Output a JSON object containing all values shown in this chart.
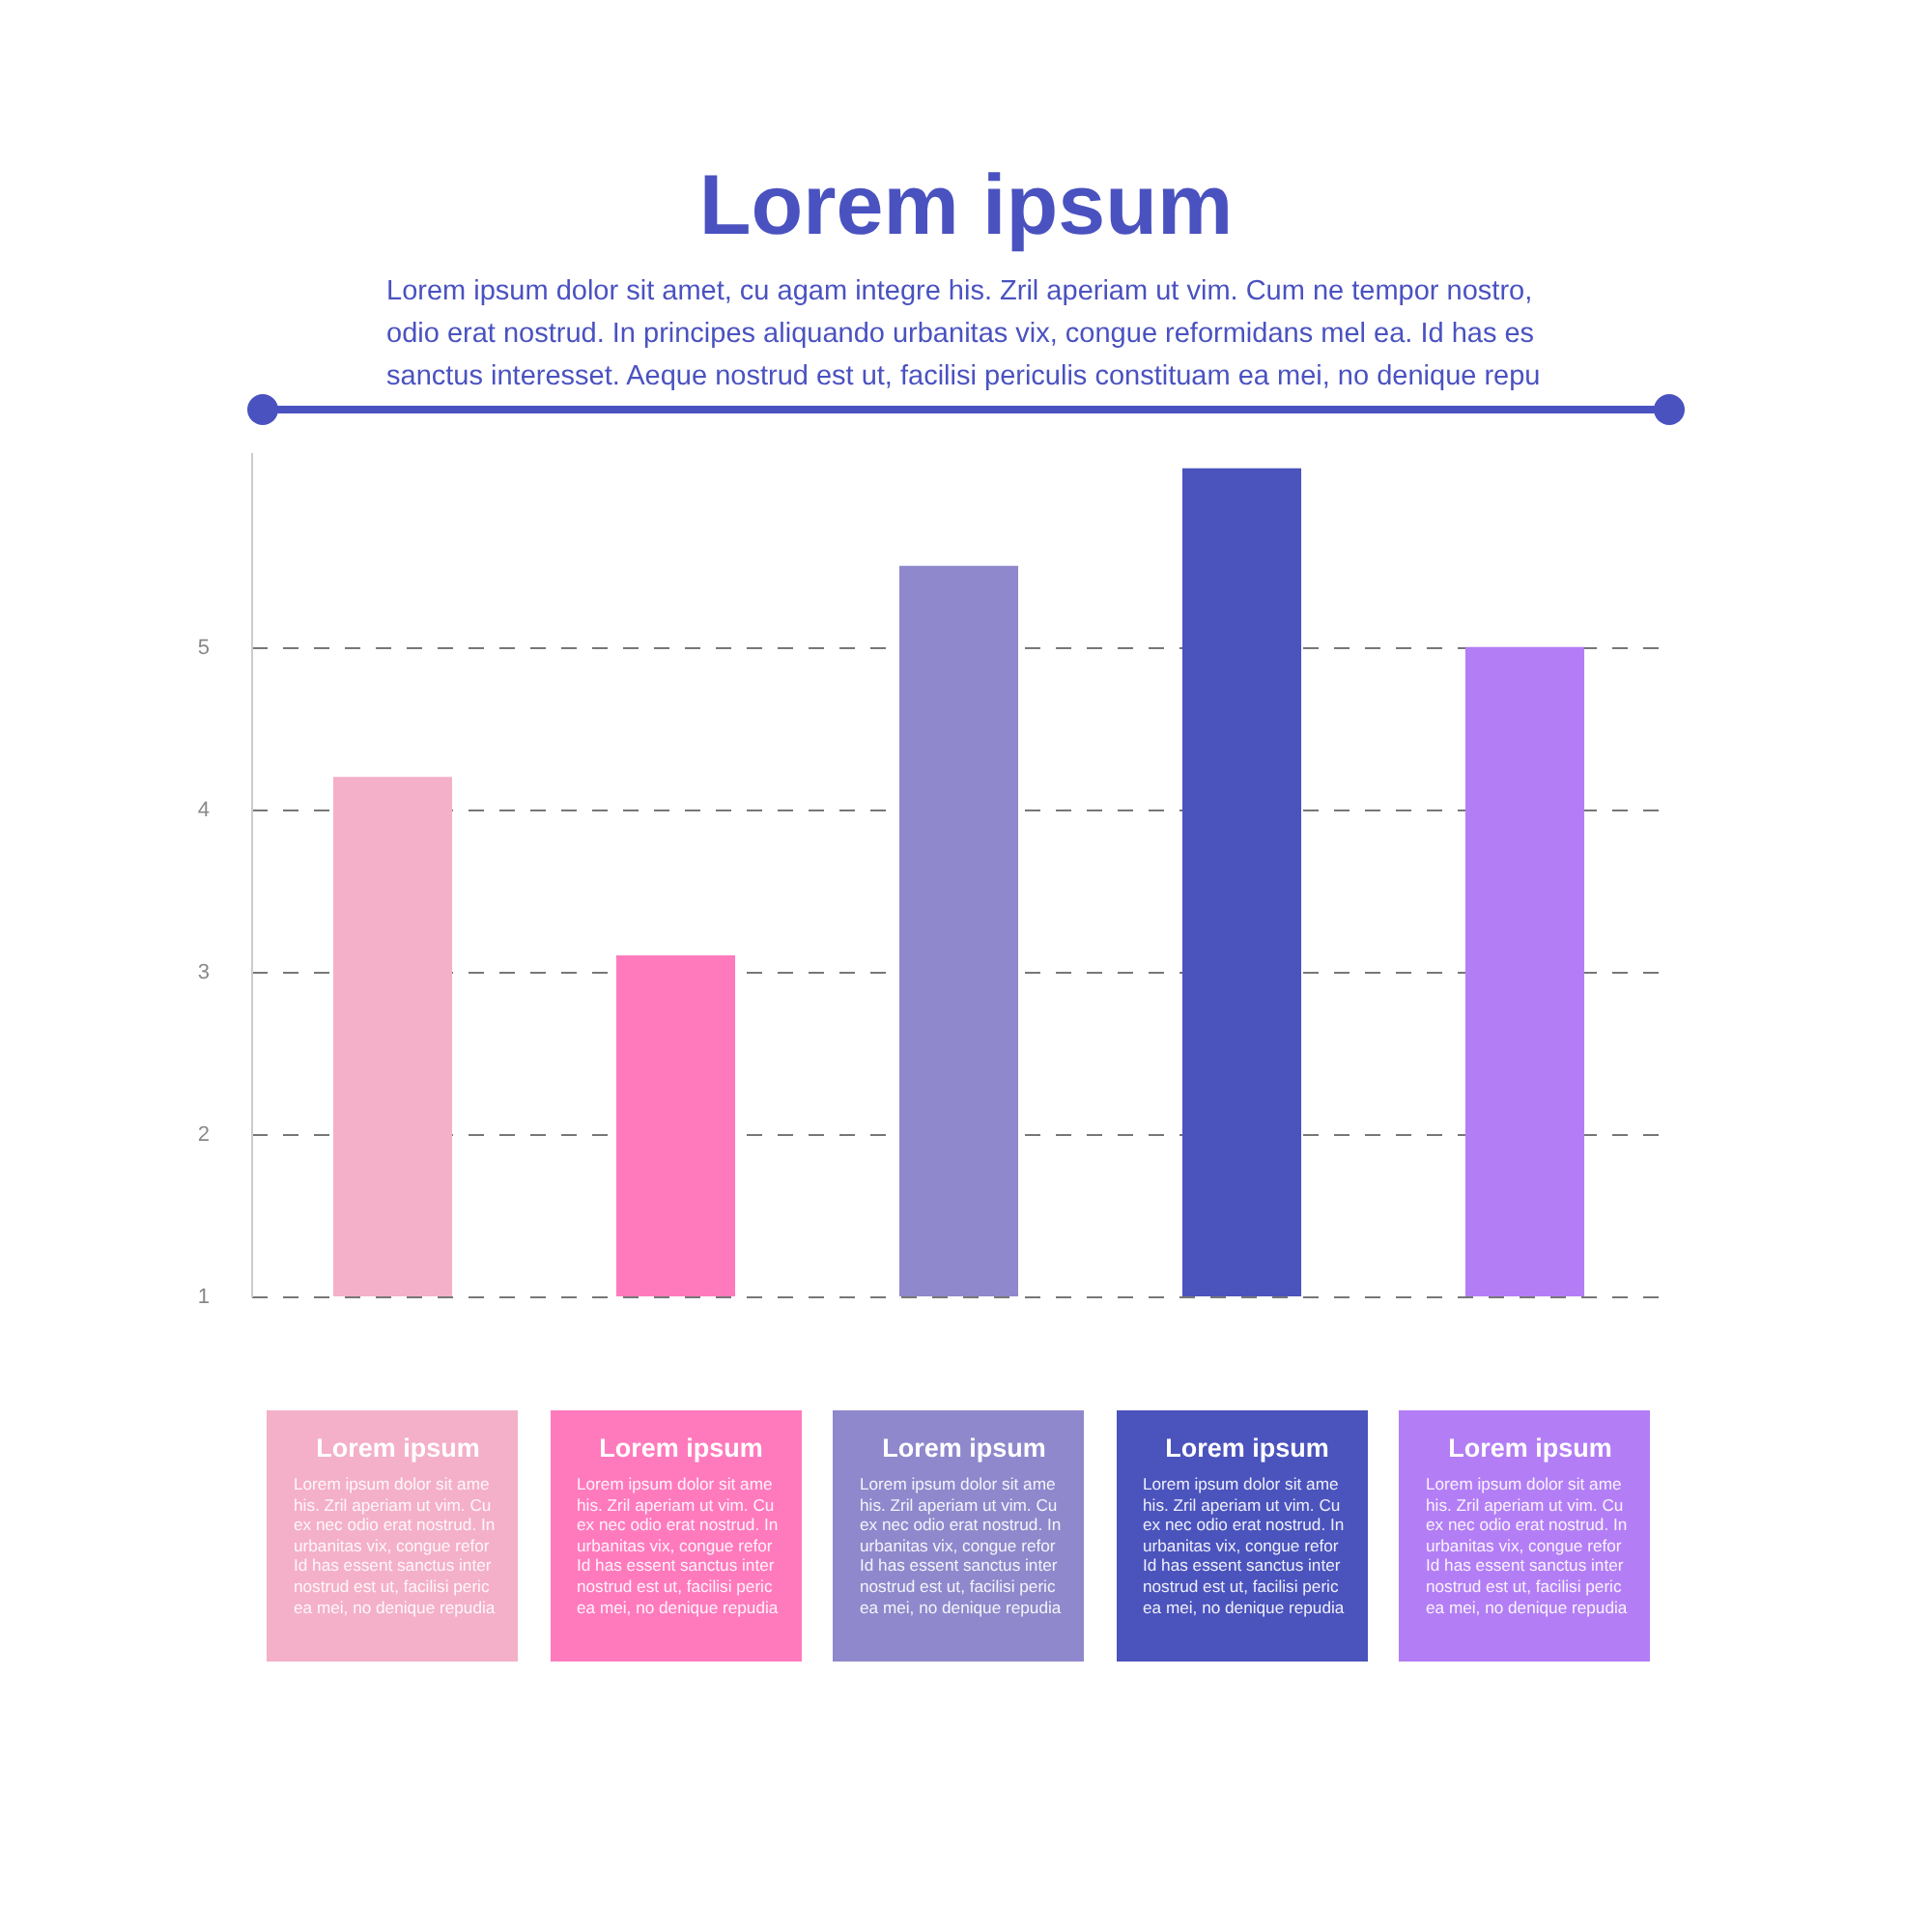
{
  "chart_data": {
    "type": "bar",
    "title": "Lorem ipsum",
    "subtitle": "Lorem ipsum dolor sit amet, cu agam integre his. Zril aperiam ut vim. Cum ne tempor nostro, odio erat nostrud. In principes aliquando urbanitas vix, congue reformidans mel ea. Id has es sanctus interesset. Aeque nostrud est ut, facilisi periculis constituam ea mei, no denique repu",
    "categories": [
      "Lorem ipsum",
      "Lorem ipsum",
      "Lorem ipsum",
      "Lorem ipsum",
      "Lorem ipsum"
    ],
    "values": [
      4.2,
      3.1,
      5.5,
      6.1,
      5.0
    ],
    "colors": [
      "#f4b0c8",
      "#ff7abd",
      "#8f88cc",
      "#4b53bd",
      "#b37ef5"
    ],
    "ylim": [
      1,
      6.2
    ],
    "yticks": [
      1,
      2,
      3,
      4,
      5
    ],
    "grid": "y",
    "annotations": [
      "Lorem ipsum dolor sit ame his. Zril aperiam ut vim. Cu ex nec odio erat nostrud. In urbanitas vix, congue refor Id has essent sanctus inter nostrud est ut, facilisi peric ea mei, no denique repudia",
      "Lorem ipsum dolor sit ame his. Zril aperiam ut vim. Cu ex nec odio erat nostrud. In urbanitas vix, congue refor Id has essent sanctus inter nostrud est ut, facilisi peric ea mei, no denique repudia",
      "Lorem ipsum dolor sit ame his. Zril aperiam ut vim. Cu ex nec odio erat nostrud. In urbanitas vix, congue refor Id has essent sanctus inter nostrud est ut, facilisi peric ea mei, no denique repudia",
      "Lorem ipsum dolor sit ame his. Zril aperiam ut vim. Cu ex nec odio erat nostrud. In urbanitas vix, congue refor Id has essent sanctus inter nostrud est ut, facilisi peric ea mei, no denique repudia",
      "Lorem ipsum dolor sit ame his. Zril aperiam ut vim. Cu ex nec odio erat nostrud. In urbanitas vix, congue refor Id has essent sanctus inter nostrud est ut, facilisi peric ea mei, no denique repudia"
    ]
  }
}
